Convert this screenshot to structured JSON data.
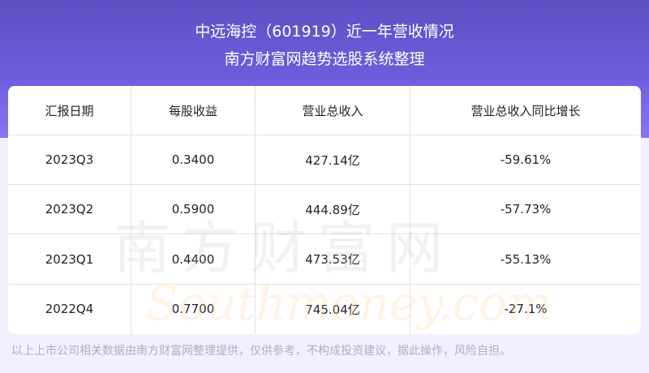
{
  "header": {
    "title": "中远海控（601919）近一年营收情况",
    "subtitle": "南方财富网趋势选股系统整理"
  },
  "watermark": {
    "cn": "南方财富网",
    "en": "Southmoney.com"
  },
  "chart_data": {
    "type": "table",
    "columns": [
      "汇报日期",
      "每股收益",
      "营业总收入",
      "营业总收入同比增长"
    ],
    "rows": [
      [
        "2023Q3",
        "0.3400",
        "427.14亿",
        "-59.61%"
      ],
      [
        "2023Q2",
        "0.5900",
        "444.89亿",
        "-57.73%"
      ],
      [
        "2023Q1",
        "0.4400",
        "473.53亿",
        "-55.13%"
      ],
      [
        "2022Q4",
        "0.7700",
        "745.04亿",
        "-27.1%"
      ]
    ]
  },
  "footer": {
    "disclaimer": "以上上市公司相关数据由南方财富网整理提供，仅供参考，不构成投资建议，据此操作，风险自担。"
  },
  "colors": {
    "header": "#6d5ddc",
    "background": "#f2f0fe"
  }
}
